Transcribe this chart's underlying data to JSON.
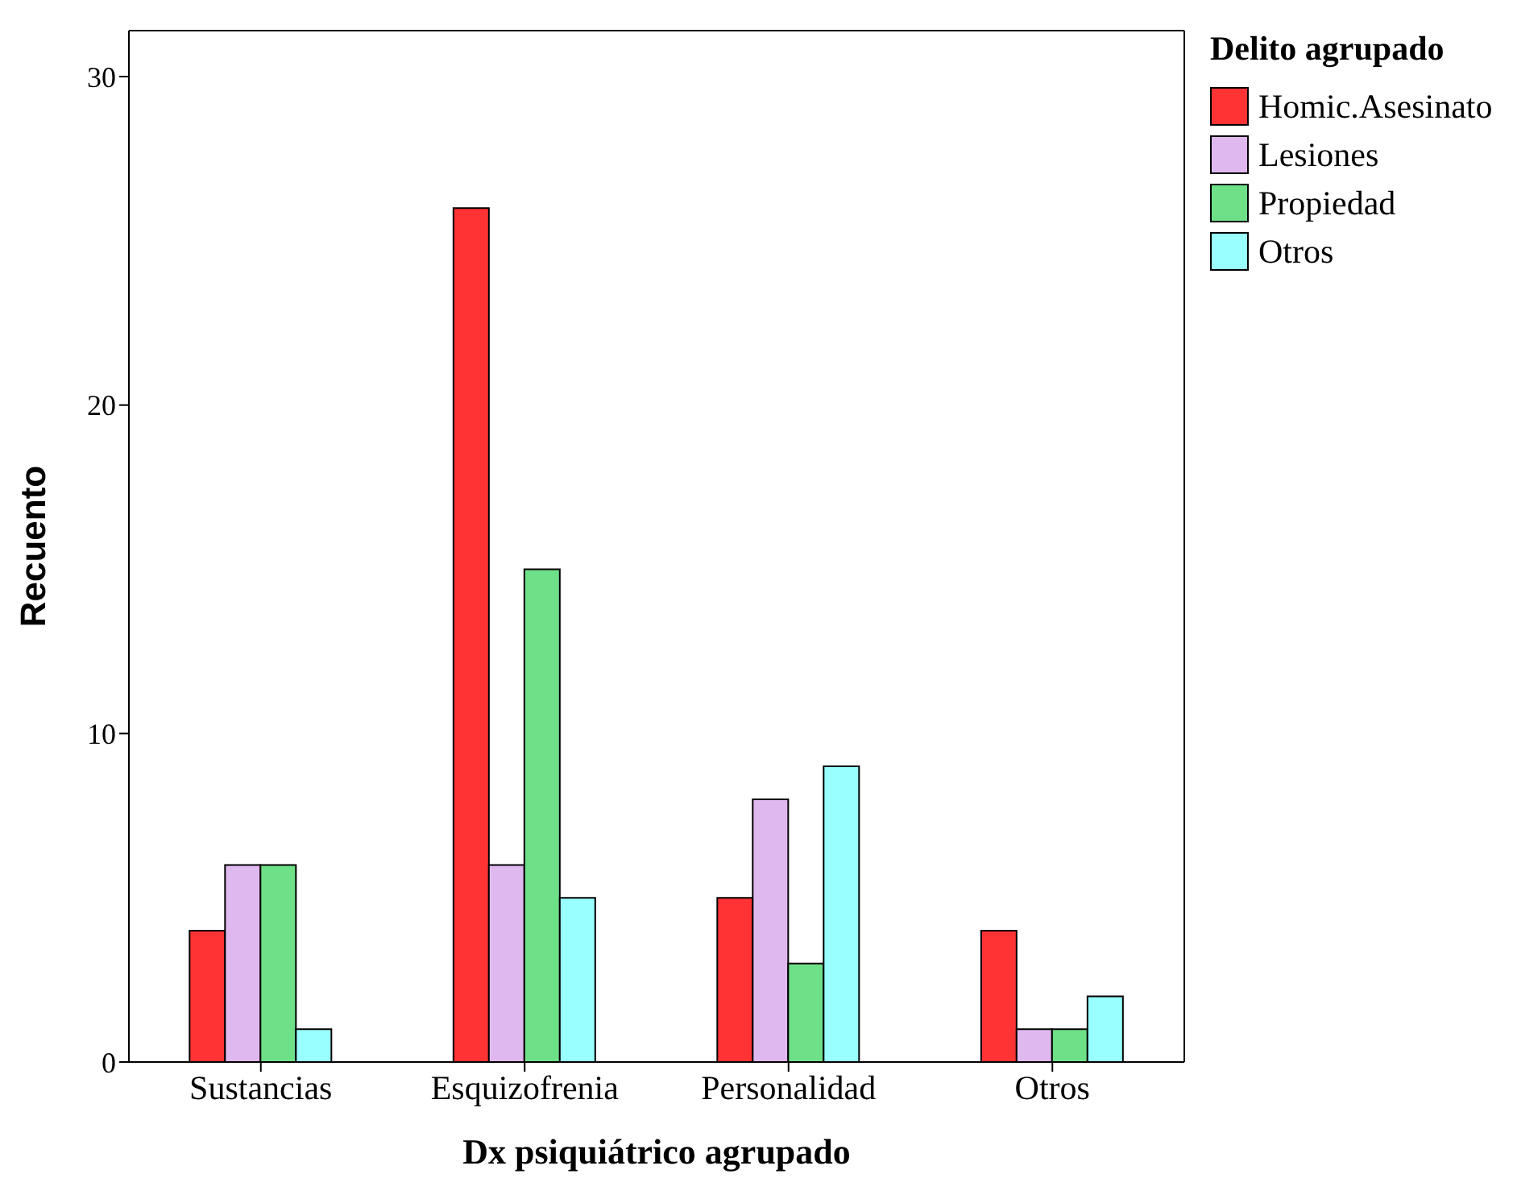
{
  "chart_data": {
    "type": "bar",
    "xlabel": "Dx psiquiátrico agrupado",
    "ylabel": "Recuento",
    "legend_title": "Delito agrupado",
    "categories": [
      "Sustancias",
      "Esquizofrenia",
      "Personalidad",
      "Otros"
    ],
    "series": [
      {
        "name": "Homic.Asesinato",
        "color": "#ff3333",
        "values": [
          4,
          26,
          5,
          4
        ]
      },
      {
        "name": "Lesiones",
        "color": "#e0b8f0",
        "values": [
          6,
          6,
          8,
          1
        ]
      },
      {
        "name": "Propiedad",
        "color": "#6ee087",
        "values": [
          6,
          15,
          3,
          1
        ]
      },
      {
        "name": "Otros",
        "color": "#99ffff",
        "values": [
          1,
          5,
          9,
          2
        ]
      }
    ],
    "ylim": [
      0,
      31.4
    ],
    "yticks": [
      0,
      10,
      20,
      30
    ],
    "grid": false,
    "legend": "top right"
  }
}
